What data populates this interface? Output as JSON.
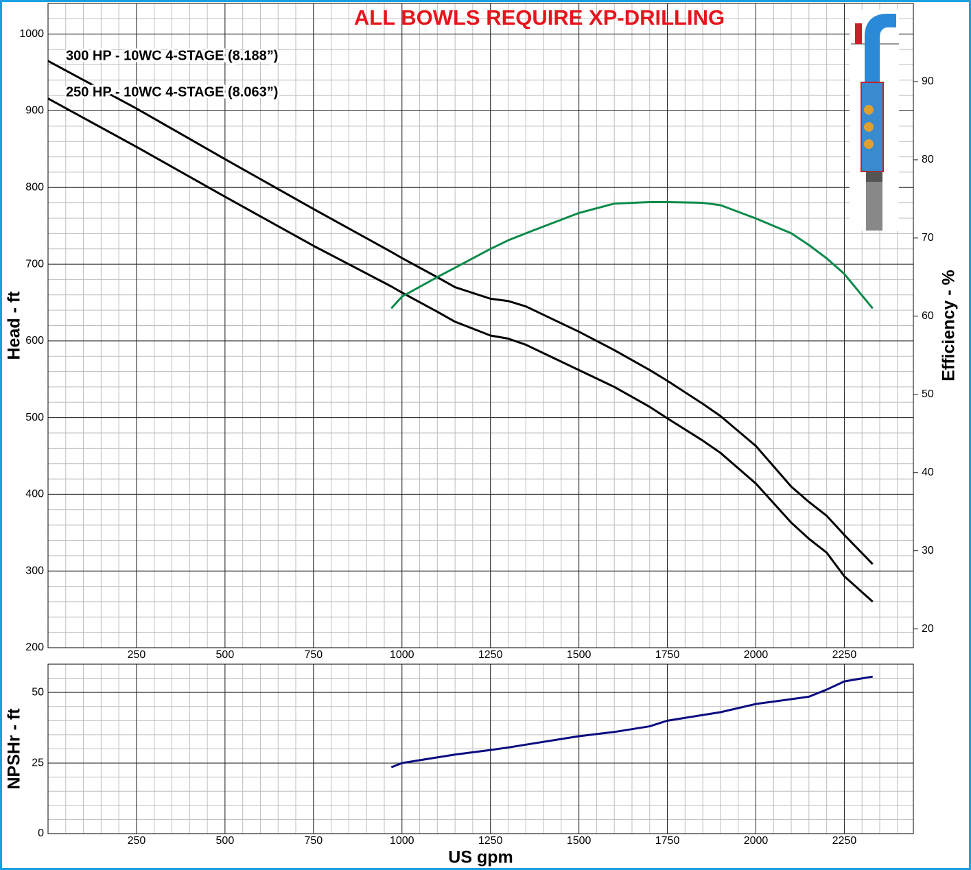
{
  "chart_data": [
    {
      "type": "line",
      "title": "ALL BOWLS REQUIRE XP-DRILLING",
      "y_label": "Head - ft",
      "y2_label": "Efficiency - %",
      "x": [
        0,
        250,
        500,
        750,
        970,
        1000,
        1100,
        1150,
        1250,
        1300,
        1350,
        1500,
        1600,
        1700,
        1750,
        1850,
        1900,
        2000,
        2100,
        2150,
        2200,
        2250,
        2330
      ],
      "xlim": [
        0,
        2445
      ],
      "xticks": [
        250,
        500,
        750,
        1000,
        1250,
        1500,
        1750,
        2000,
        2250
      ],
      "ylim": [
        200,
        1040
      ],
      "yticks": [
        200,
        300,
        400,
        500,
        600,
        700,
        800,
        900,
        1000
      ],
      "y2lim": [
        17.6,
        100
      ],
      "y2ticks": [
        20,
        30,
        40,
        50,
        60,
        70,
        80,
        90
      ],
      "grid": true,
      "series": [
        {
          "name": "300 HP - 10WC 4-STAGE (8.188”)",
          "color": "#000000",
          "values": [
            965,
            903,
            837,
            772,
            716,
            708,
            683,
            670,
            655,
            652,
            645,
            612,
            588,
            562,
            548,
            518,
            502,
            463,
            410,
            390,
            372,
            347,
            309
          ]
        },
        {
          "name": "250 HP - 10WC 4-STAGE (8.063”)",
          "color": "#000000",
          "values": [
            916,
            853,
            788,
            724,
            671,
            663,
            638,
            625,
            607,
            603,
            595,
            562,
            540,
            514,
            499,
            470,
            454,
            414,
            363,
            342,
            324,
            293,
            260
          ]
        },
        {
          "color": "#0a8a4a",
          "axis": "y2",
          "values": [
            null,
            null,
            null,
            null,
            61,
            62.5,
            65,
            66.2,
            68.6,
            69.7,
            70.6,
            73.2,
            74.4,
            74.6,
            74.6,
            74.5,
            74.2,
            72.5,
            70.6,
            69.1,
            67.4,
            65.4,
            61
          ]
        }
      ]
    },
    {
      "type": "line",
      "x_label": "US gpm",
      "y_label": "NPSHr - ft",
      "x": [
        970,
        1000,
        1100,
        1150,
        1250,
        1300,
        1350,
        1500,
        1600,
        1700,
        1750,
        1850,
        1900,
        2000,
        2100,
        2150,
        2200,
        2250,
        2330
      ],
      "xlim": [
        0,
        2445
      ],
      "xticks": [
        250,
        500,
        750,
        1000,
        1250,
        1500,
        1750,
        2000,
        2250
      ],
      "ylim": [
        0,
        60
      ],
      "yticks": [
        0,
        25,
        50
      ],
      "grid": true,
      "series": [
        {
          "color": "#0a0a80",
          "values": [
            23.5,
            25,
            27,
            28,
            29.6,
            30.5,
            31.5,
            34.5,
            36,
            38,
            40,
            42,
            43,
            45.9,
            47.6,
            48.5,
            51,
            53.9,
            55.6
          ]
        }
      ]
    }
  ]
}
